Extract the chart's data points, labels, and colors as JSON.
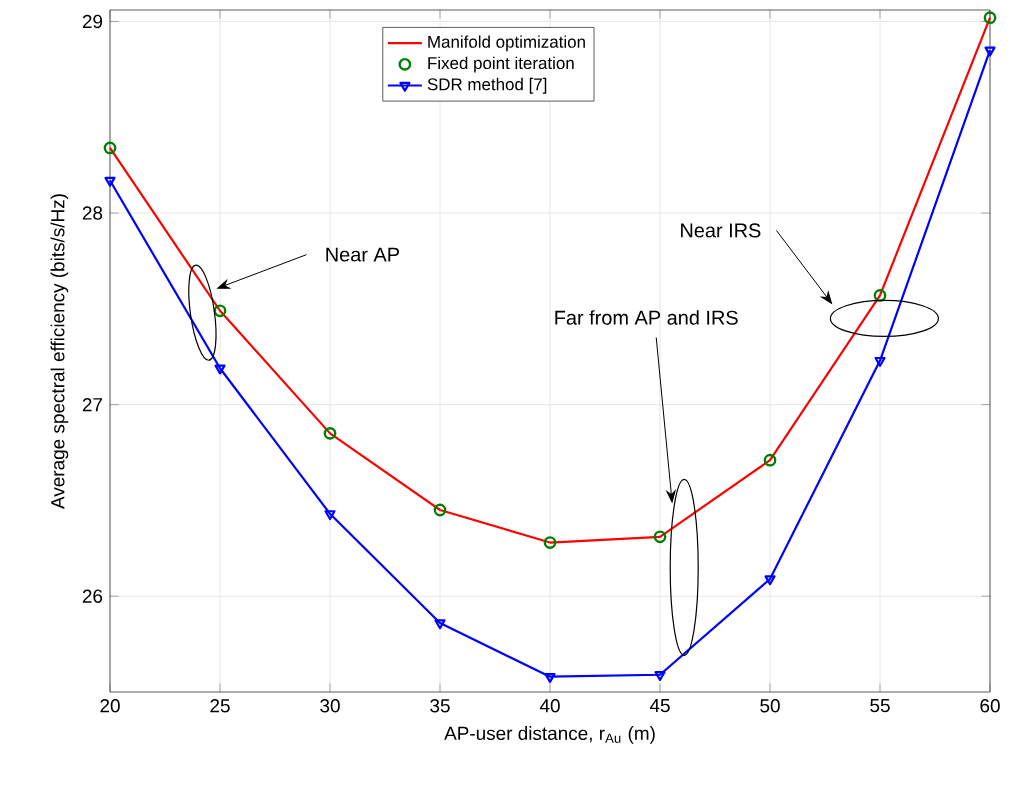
{
  "chart_data": {
    "type": "line",
    "xlabel": "AP-user distance, r$_{Au}$ (m)",
    "ylabel": "Average spectral efficiency (bits/s/Hz)",
    "x": [
      20,
      25,
      30,
      35,
      40,
      45,
      50,
      55,
      60
    ],
    "xlim": [
      20,
      60
    ],
    "xticks": [
      20,
      25,
      30,
      35,
      40,
      45,
      50,
      55,
      60
    ],
    "ylim": [
      25.5,
      29.06
    ],
    "yticks": [
      26,
      27,
      28,
      29
    ],
    "grid": true,
    "legend": "top",
    "series": [
      {
        "name": "Manifold optimization",
        "color": "#ff0000",
        "marker": "none",
        "values": [
          28.34,
          27.49,
          26.85,
          26.45,
          26.28,
          26.31,
          26.71,
          27.57,
          29.02
        ]
      },
      {
        "name": "Fixed point iteration",
        "type": "scatter",
        "color": "#008000",
        "marker": "circle",
        "values": [
          28.34,
          27.49,
          26.85,
          26.45,
          26.28,
          26.31,
          26.71,
          27.57,
          29.02
        ]
      },
      {
        "name": "SDR method [7]",
        "color": "#0000ff",
        "marker": "triangle",
        "values": [
          28.17,
          27.19,
          26.43,
          25.86,
          25.58,
          25.59,
          26.09,
          27.23,
          28.85
        ]
      }
    ],
    "annotations": [
      "Near AP",
      "Far from AP and IRS",
      "Near IRS"
    ]
  }
}
